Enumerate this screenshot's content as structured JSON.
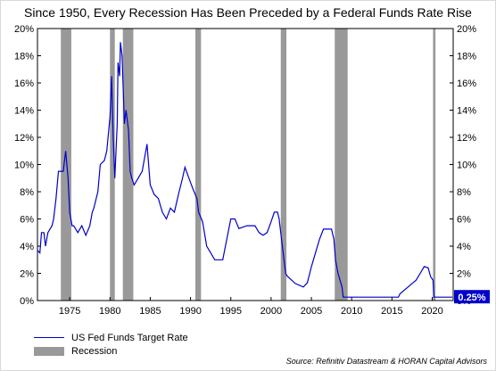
{
  "chart_data": {
    "type": "line",
    "title": "Since 1950, Every Recession Has Been Preceded by a Federal Funds Rate Rise",
    "xlabel": "",
    "ylabel": "",
    "xlim": [
      1971,
      2022.6
    ],
    "ylim": [
      0,
      20
    ],
    "x_ticks": [
      1975,
      1980,
      1985,
      1990,
      1995,
      2000,
      2005,
      2010,
      2015,
      2020
    ],
    "x_tick_labels": [
      "1975",
      "1980",
      "1985",
      "1990",
      "1995",
      "2000",
      "2005",
      "2010",
      "2015",
      "2020"
    ],
    "y_ticks": [
      0,
      2,
      4,
      6,
      8,
      10,
      12,
      14,
      16,
      18,
      20
    ],
    "y_tick_labels": [
      "0%",
      "2%",
      "4%",
      "6%",
      "8%",
      "10%",
      "12%",
      "14%",
      "16%",
      "18%",
      "20%"
    ],
    "grid": false,
    "legend_position": "bottom-left",
    "series": [
      {
        "name": "US Fed Funds Target Rate",
        "color": "#0000cc",
        "points": [
          [
            1971.0,
            3.7
          ],
          [
            1971.3,
            3.5
          ],
          [
            1971.5,
            5.0
          ],
          [
            1971.8,
            5.0
          ],
          [
            1972.0,
            4.0
          ],
          [
            1972.3,
            5.0
          ],
          [
            1972.8,
            5.5
          ],
          [
            1973.0,
            6.0
          ],
          [
            1973.3,
            7.5
          ],
          [
            1973.6,
            9.5
          ],
          [
            1974.2,
            9.5
          ],
          [
            1974.5,
            11.0
          ],
          [
            1974.8,
            9.0
          ],
          [
            1975.0,
            6.5
          ],
          [
            1975.3,
            5.5
          ],
          [
            1975.5,
            5.5
          ],
          [
            1976.0,
            5.0
          ],
          [
            1976.5,
            5.5
          ],
          [
            1977.0,
            4.8
          ],
          [
            1977.5,
            5.5
          ],
          [
            1977.8,
            6.5
          ],
          [
            1978.0,
            6.8
          ],
          [
            1978.5,
            8.0
          ],
          [
            1978.8,
            10.0
          ],
          [
            1979.3,
            10.3
          ],
          [
            1979.6,
            11.0
          ],
          [
            1980.0,
            13.5
          ],
          [
            1980.2,
            16.5
          ],
          [
            1980.4,
            12.0
          ],
          [
            1980.6,
            9.0
          ],
          [
            1980.9,
            13.0
          ],
          [
            1981.0,
            17.5
          ],
          [
            1981.2,
            16.5
          ],
          [
            1981.3,
            19.0
          ],
          [
            1981.5,
            18.0
          ],
          [
            1981.8,
            13.0
          ],
          [
            1982.0,
            14.0
          ],
          [
            1982.3,
            12.5
          ],
          [
            1982.5,
            9.5
          ],
          [
            1982.7,
            9.0
          ],
          [
            1983.0,
            8.5
          ],
          [
            1983.5,
            9.0
          ],
          [
            1984.0,
            9.5
          ],
          [
            1984.6,
            11.5
          ],
          [
            1985.0,
            8.5
          ],
          [
            1985.5,
            7.8
          ],
          [
            1986.0,
            7.5
          ],
          [
            1986.5,
            6.5
          ],
          [
            1987.0,
            6.0
          ],
          [
            1987.5,
            6.8
          ],
          [
            1988.0,
            6.5
          ],
          [
            1988.5,
            7.8
          ],
          [
            1989.0,
            9.0
          ],
          [
            1989.3,
            9.8
          ],
          [
            1989.8,
            9.0
          ],
          [
            1990.3,
            8.2
          ],
          [
            1990.8,
            7.5
          ],
          [
            1991.0,
            6.5
          ],
          [
            1991.5,
            5.8
          ],
          [
            1992.0,
            4.0
          ],
          [
            1992.5,
            3.5
          ],
          [
            1993.0,
            3.0
          ],
          [
            1994.0,
            3.0
          ],
          [
            1994.5,
            4.5
          ],
          [
            1995.0,
            6.0
          ],
          [
            1995.5,
            6.0
          ],
          [
            1996.0,
            5.3
          ],
          [
            1997.0,
            5.5
          ],
          [
            1998.0,
            5.5
          ],
          [
            1998.5,
            5.0
          ],
          [
            1999.0,
            4.8
          ],
          [
            1999.5,
            5.0
          ],
          [
            2000.0,
            5.8
          ],
          [
            2000.4,
            6.5
          ],
          [
            2000.8,
            6.5
          ],
          [
            2001.0,
            6.0
          ],
          [
            2001.4,
            4.0
          ],
          [
            2001.8,
            2.0
          ],
          [
            2002.0,
            1.8
          ],
          [
            2003.0,
            1.25
          ],
          [
            2004.0,
            1.0
          ],
          [
            2004.5,
            1.3
          ],
          [
            2005.0,
            2.5
          ],
          [
            2006.0,
            4.5
          ],
          [
            2006.5,
            5.25
          ],
          [
            2007.5,
            5.25
          ],
          [
            2007.8,
            4.5
          ],
          [
            2008.0,
            3.0
          ],
          [
            2008.3,
            2.0
          ],
          [
            2008.8,
            1.0
          ],
          [
            2008.95,
            0.25
          ],
          [
            2015.8,
            0.25
          ],
          [
            2016.0,
            0.5
          ],
          [
            2017.0,
            1.0
          ],
          [
            2017.5,
            1.25
          ],
          [
            2018.0,
            1.5
          ],
          [
            2018.5,
            2.0
          ],
          [
            2019.0,
            2.5
          ],
          [
            2019.5,
            2.4
          ],
          [
            2019.8,
            1.75
          ],
          [
            2020.1,
            1.5
          ],
          [
            2020.2,
            0.25
          ],
          [
            2022.5,
            0.25
          ]
        ]
      }
    ],
    "recessions": {
      "name": "Recession",
      "color": "#999999",
      "periods": [
        [
          1973.9,
          1975.2
        ],
        [
          1980.0,
          1980.6
        ],
        [
          1981.6,
          1982.9
        ],
        [
          1990.6,
          1991.3
        ],
        [
          2001.2,
          2001.9
        ],
        [
          2007.9,
          2009.5
        ],
        [
          2020.1,
          2020.4
        ]
      ]
    },
    "last_value_label": "0.25%",
    "last_value_label_color": "#0000cc"
  },
  "source": "Source: Refinitiv Datastream & HORAN Capital Advisors"
}
